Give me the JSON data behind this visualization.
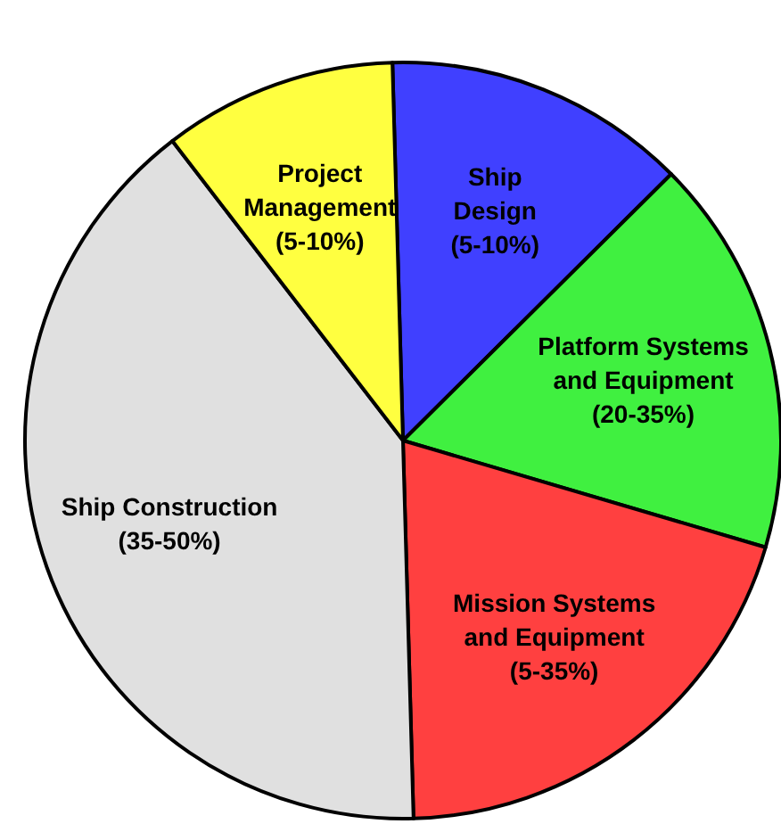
{
  "chart_data": {
    "type": "pie",
    "categories": [
      "Ship Design (5-10%)",
      "Platform Systems and Equipment (20-35%)",
      "Mission Systems and Equipment (5-35%)",
      "Ship Construction (35-50%)",
      "Project Management (5-10%)"
    ],
    "values": [
      13,
      17,
      20,
      40,
      10
    ],
    "colors": [
      "#4040ff",
      "#40f040",
      "#ff4040",
      "#e0e0e0",
      "#ffff40"
    ]
  }
}
